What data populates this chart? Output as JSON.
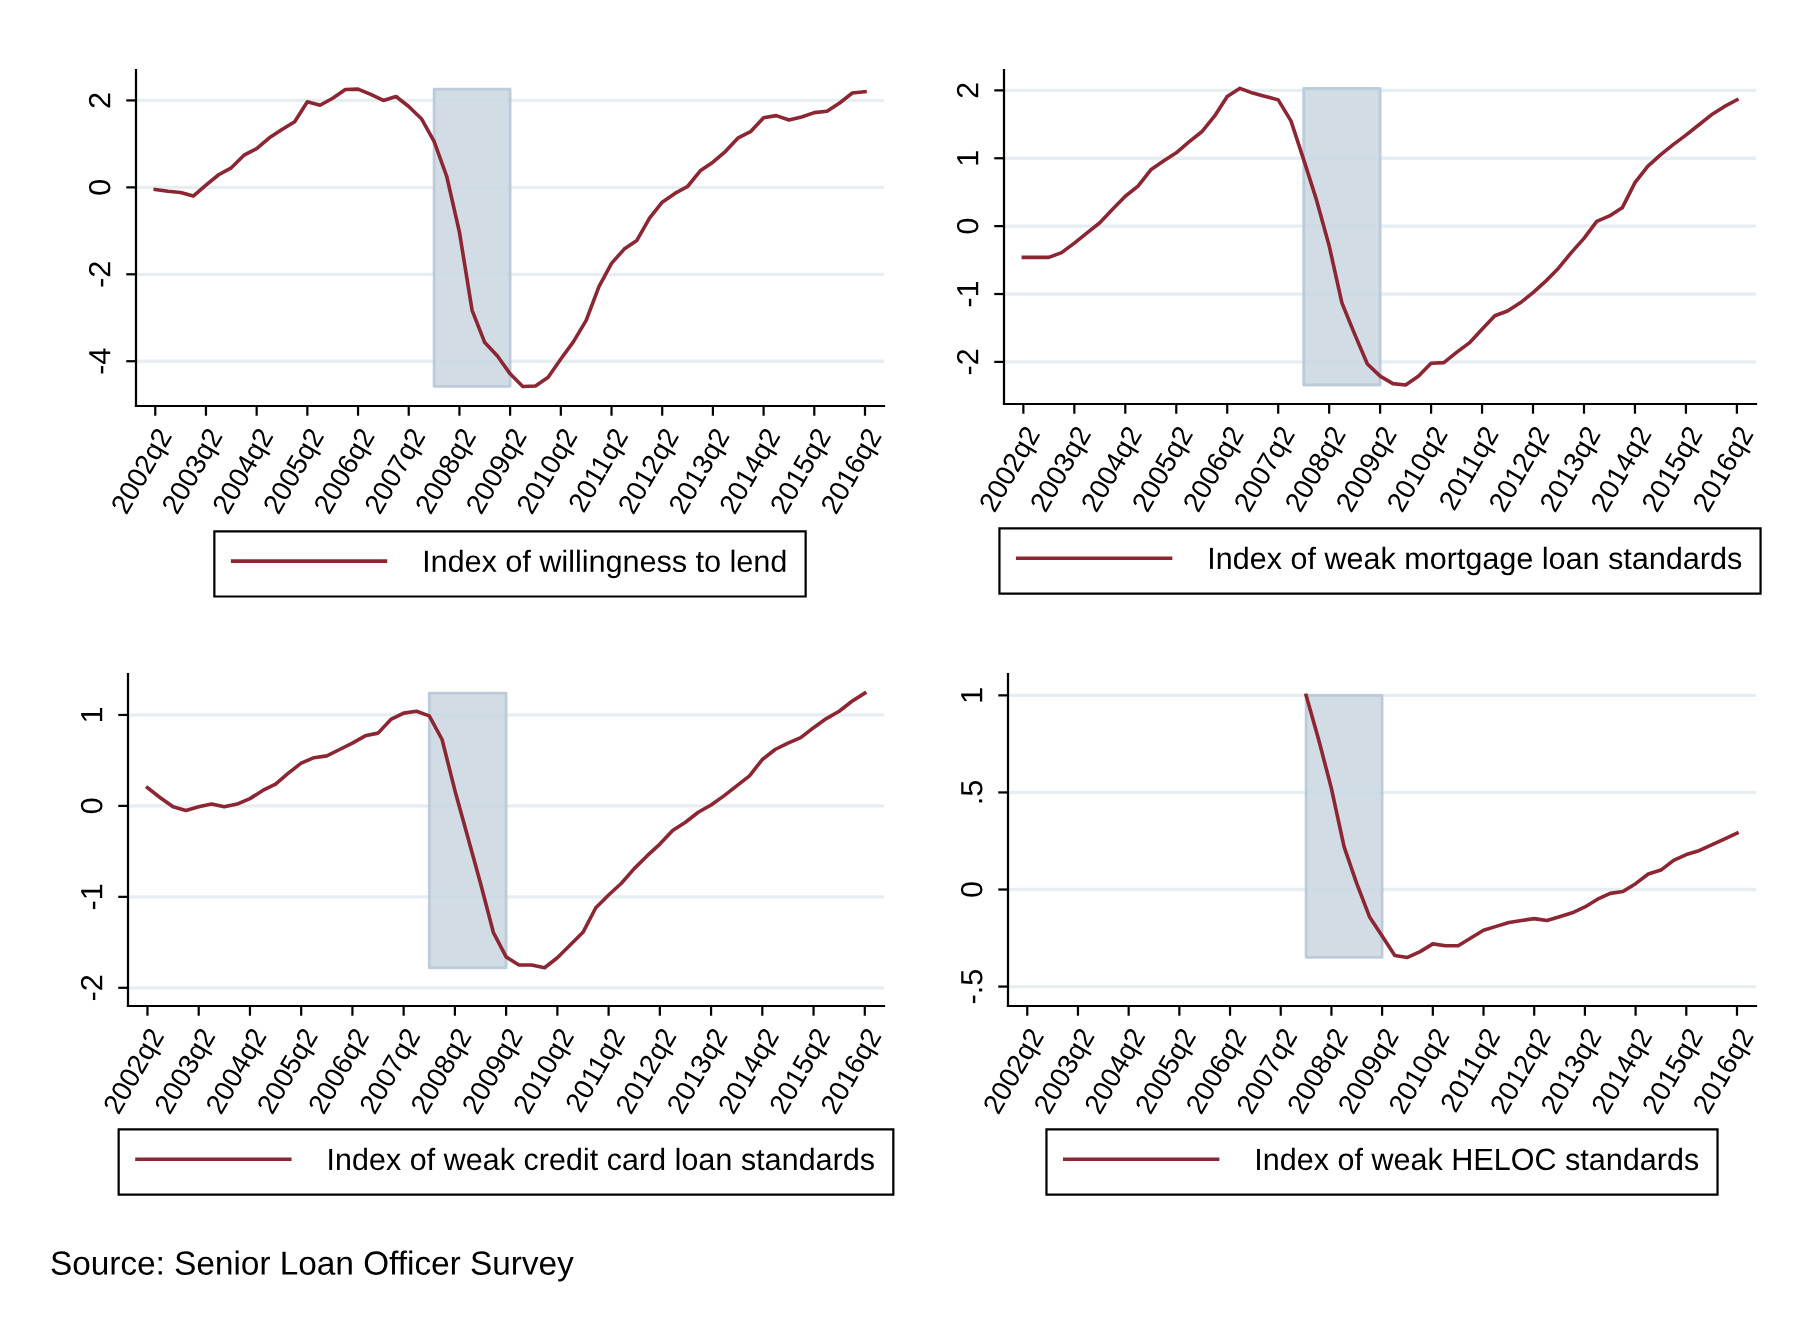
{
  "chart_data": [
    {
      "type": "line",
      "ylim": [
        -5.03,
        2.7
      ],
      "yticks": [
        {
          "value": -4,
          "label": "-4"
        },
        {
          "value": -2,
          "label": "-2"
        },
        0,
        2
      ],
      "categories": [
        "2002q2",
        null,
        null,
        null,
        "2003q2",
        null,
        null,
        null,
        "2004q2",
        null,
        null,
        null,
        "2005q2",
        null,
        null,
        null,
        "2006q2",
        null,
        null,
        null,
        "2007q2",
        null,
        null,
        null,
        "2008q2",
        null,
        null,
        null,
        "2009q2",
        null,
        null,
        null,
        "2010q2",
        null,
        null,
        null,
        "2011q2",
        null,
        null,
        null,
        "2012q2",
        null,
        null,
        null,
        "2013q2",
        null,
        null,
        null,
        "2014q2",
        null,
        null,
        null,
        "2015q2",
        null,
        null,
        null,
        "2016q2"
      ],
      "grid": "y",
      "legend": "bottom",
      "series": [
        {
          "name": "Index of willingness to lend",
          "color": "#8c2633",
          "values": [
            -0.05,
            -0.09,
            -0.12,
            -0.2,
            0.05,
            0.29,
            0.45,
            0.74,
            0.89,
            1.14,
            1.33,
            1.51,
            1.97,
            1.89,
            2.05,
            2.25,
            2.26,
            2.14,
            2.0,
            2.09,
            1.86,
            1.58,
            1.06,
            0.25,
            -1.03,
            -2.83,
            -3.57,
            -3.88,
            -4.29,
            -4.58,
            -4.57,
            -4.37,
            -3.95,
            -3.55,
            -3.06,
            -2.29,
            -1.75,
            -1.42,
            -1.22,
            -0.71,
            -0.34,
            -0.14,
            0.02,
            0.38,
            0.58,
            0.83,
            1.14,
            1.29,
            1.6,
            1.65,
            1.55,
            1.62,
            1.72,
            1.75,
            1.94,
            2.17,
            2.2
          ]
        }
      ]
    },
    {
      "type": "line",
      "ylim": [
        -2.62,
        2.3
      ],
      "yticks": [
        {
          "value": -2,
          "label": "-2"
        },
        {
          "value": -1,
          "label": "-1"
        },
        0,
        1,
        2
      ],
      "categories": [
        "2002q2",
        null,
        null,
        null,
        "2003q2",
        null,
        null,
        null,
        "2004q2",
        null,
        null,
        null,
        "2005q2",
        null,
        null,
        null,
        "2006q2",
        null,
        null,
        null,
        "2007q2",
        null,
        null,
        null,
        "2008q2",
        null,
        null,
        null,
        "2009q2",
        null,
        null,
        null,
        "2010q2",
        null,
        null,
        null,
        "2011q2",
        null,
        null,
        null,
        "2012q2",
        null,
        null,
        null,
        "2013q2",
        null,
        null,
        null,
        "2014q2",
        null,
        null,
        null,
        "2015q2",
        null,
        null,
        null,
        "2016q2"
      ],
      "grid": "y",
      "legend": "bottom",
      "series": [
        {
          "name": "Index of weak mortgage loan standards",
          "color": "#8c2633",
          "values": [
            -0.46,
            -0.46,
            -0.46,
            -0.39,
            -0.25,
            -0.1,
            0.05,
            0.25,
            0.44,
            0.59,
            0.83,
            0.96,
            1.08,
            1.24,
            1.39,
            1.62,
            1.91,
            2.03,
            1.96,
            1.91,
            1.86,
            1.55,
            0.98,
            0.39,
            -0.29,
            -1.13,
            -1.59,
            -2.03,
            -2.21,
            -2.32,
            -2.34,
            -2.21,
            -2.02,
            -2.01,
            -1.86,
            -1.72,
            -1.52,
            -1.32,
            -1.25,
            -1.13,
            -0.98,
            -0.81,
            -0.62,
            -0.39,
            -0.18,
            0.07,
            0.15,
            0.27,
            0.64,
            0.88,
            1.05,
            1.2,
            1.34,
            1.49,
            1.64,
            1.76,
            1.86
          ]
        }
      ]
    },
    {
      "type": "line",
      "ylim": [
        -2.2,
        1.45
      ],
      "yticks": [
        {
          "value": -2,
          "label": "-2"
        },
        {
          "value": -1,
          "label": "-1"
        },
        0,
        1
      ],
      "categories": [
        "2002q2",
        null,
        null,
        null,
        "2003q2",
        null,
        null,
        null,
        "2004q2",
        null,
        null,
        null,
        "2005q2",
        null,
        null,
        null,
        "2006q2",
        null,
        null,
        null,
        "2007q2",
        null,
        null,
        null,
        "2008q2",
        null,
        null,
        null,
        "2009q2",
        null,
        null,
        null,
        "2010q2",
        null,
        null,
        null,
        "2011q2",
        null,
        null,
        null,
        "2012q2",
        null,
        null,
        null,
        "2013q2",
        null,
        null,
        null,
        "2014q2",
        null,
        null,
        null,
        "2015q2",
        null,
        null,
        null,
        "2016q2"
      ],
      "grid": "y",
      "legend": "bottom",
      "series": [
        {
          "name": "Index of weak credit card loan standards",
          "color": "#8c2633",
          "values": [
            0.2,
            0.09,
            -0.01,
            -0.05,
            -0.01,
            0.02,
            -0.01,
            0.02,
            0.08,
            0.17,
            0.24,
            0.36,
            0.47,
            0.53,
            0.55,
            0.62,
            0.69,
            0.77,
            0.8,
            0.95,
            1.02,
            1.04,
            0.99,
            0.73,
            0.17,
            -0.34,
            -0.85,
            -1.39,
            -1.66,
            -1.75,
            -1.75,
            -1.78,
            -1.67,
            -1.53,
            -1.39,
            -1.12,
            -0.98,
            -0.85,
            -0.69,
            -0.55,
            -0.42,
            -0.27,
            -0.18,
            -0.07,
            0.01,
            0.11,
            0.22,
            0.33,
            0.51,
            0.62,
            0.69,
            0.75,
            0.86,
            0.96,
            1.04,
            1.15,
            1.24
          ]
        }
      ]
    },
    {
      "type": "line",
      "ylim": [
        -0.6,
        1.11
      ],
      "yticks": [
        {
          "value": -0.5,
          "label": "-.5"
        },
        0,
        {
          "value": 0.5,
          "label": ".5"
        },
        1
      ],
      "categories": [
        "2002q2",
        null,
        null,
        null,
        "2003q2",
        null,
        null,
        null,
        "2004q2",
        null,
        null,
        null,
        "2005q2",
        null,
        null,
        null,
        "2006q2",
        null,
        null,
        null,
        "2007q2",
        null,
        null,
        null,
        "2008q2",
        null,
        null,
        null,
        "2009q2",
        null,
        null,
        null,
        "2010q2",
        null,
        null,
        null,
        "2011q2",
        null,
        null,
        null,
        "2012q2",
        null,
        null,
        null,
        "2013q2",
        null,
        null,
        null,
        "2014q2",
        null,
        null,
        null,
        "2015q2",
        null,
        null,
        null,
        "2016q2"
      ],
      "grid": "y",
      "legend": "bottom",
      "annotations": [
        "Source: Senior Loan Officer Survey"
      ],
      "series": [
        {
          "name": "Index of weak HELOC standards",
          "color": "#8c2633",
          "values": [
            null,
            null,
            null,
            null,
            null,
            null,
            null,
            null,
            null,
            null,
            null,
            null,
            null,
            null,
            null,
            null,
            null,
            null,
            null,
            null,
            null,
            null,
            1.0,
            0.77,
            0.52,
            0.22,
            0.03,
            -0.14,
            -0.24,
            -0.34,
            -0.35,
            -0.32,
            -0.28,
            -0.29,
            -0.29,
            -0.25,
            -0.21,
            -0.19,
            -0.17,
            -0.16,
            -0.15,
            -0.16,
            -0.14,
            -0.12,
            -0.09,
            -0.05,
            -0.02,
            -0.01,
            0.03,
            0.08,
            0.1,
            0.15,
            0.18,
            0.2,
            0.23,
            0.26,
            0.29
          ]
        }
      ]
    }
  ]
}
